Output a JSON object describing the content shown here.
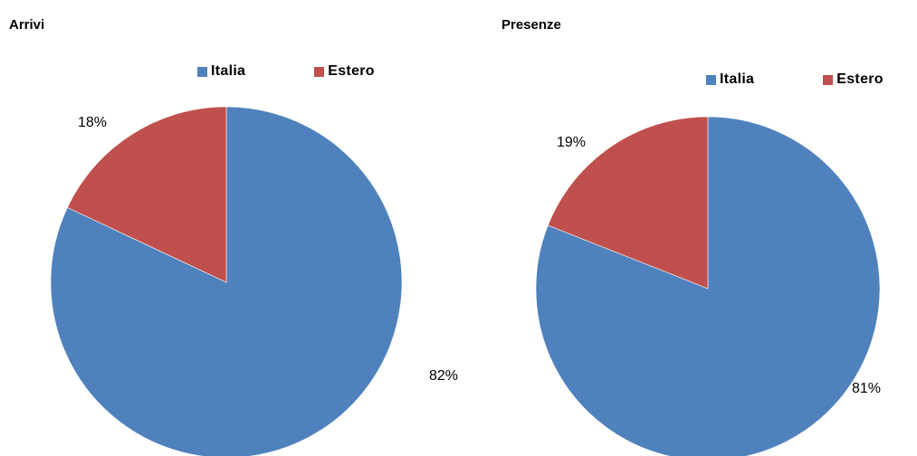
{
  "colors": {
    "italia": "#4f81bd",
    "estero": "#c0504d"
  },
  "chart_data": [
    {
      "type": "pie",
      "title": "Arrivi",
      "legend_position": "top",
      "slices": [
        {
          "label": "Italia",
          "value": 82,
          "display": "82%",
          "color": "#4f81bd"
        },
        {
          "label": "Estero",
          "value": 18,
          "display": "18%",
          "color": "#c0504d"
        }
      ]
    },
    {
      "type": "pie",
      "title": "Presenze",
      "legend_position": "top",
      "slices": [
        {
          "label": "Italia",
          "value": 81,
          "display": "81%",
          "color": "#4f81bd"
        },
        {
          "label": "Estero",
          "value": 19,
          "display": "19%",
          "color": "#c0504d"
        }
      ]
    }
  ]
}
